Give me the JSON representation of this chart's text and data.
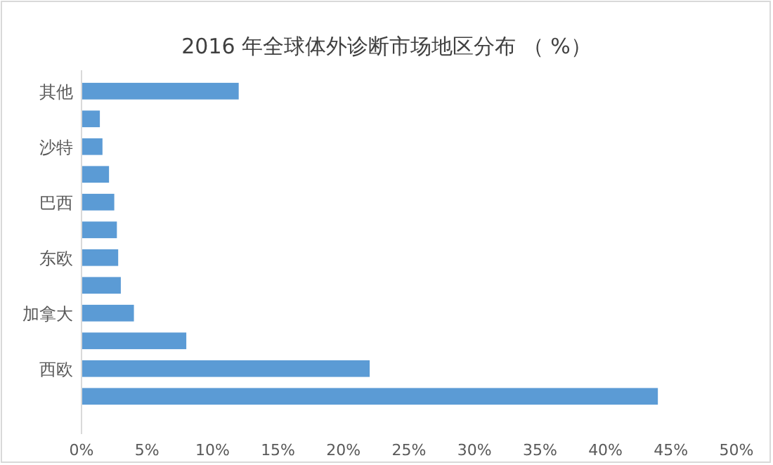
{
  "chart_data": {
    "type": "bar",
    "orientation": "horizontal",
    "title": "2016 年全球体外诊断市场地区分布 （ %）",
    "categories": [
      "其他",
      null,
      "沙特",
      null,
      "巴西",
      null,
      "东欧",
      null,
      "加拿大",
      null,
      "西欧",
      null
    ],
    "values": [
      12,
      1.4,
      1.6,
      2.1,
      2.5,
      2.7,
      2.8,
      3.0,
      4.0,
      8.0,
      22,
      44
    ],
    "color": "#5b9bd5",
    "xlim": [
      0,
      50
    ],
    "xticks": [
      {
        "value": 0,
        "label": "0%"
      },
      {
        "value": 5,
        "label": "5%"
      },
      {
        "value": 10,
        "label": "10%"
      },
      {
        "value": 15,
        "label": "15%"
      },
      {
        "value": 20,
        "label": "20%"
      },
      {
        "value": 25,
        "label": "25%"
      },
      {
        "value": 30,
        "label": "30%"
      },
      {
        "value": 35,
        "label": "35%"
      },
      {
        "value": 40,
        "label": "40%"
      },
      {
        "value": 45,
        "label": "45%"
      },
      {
        "value": 50,
        "label": "50%"
      }
    ],
    "grid": false
  }
}
